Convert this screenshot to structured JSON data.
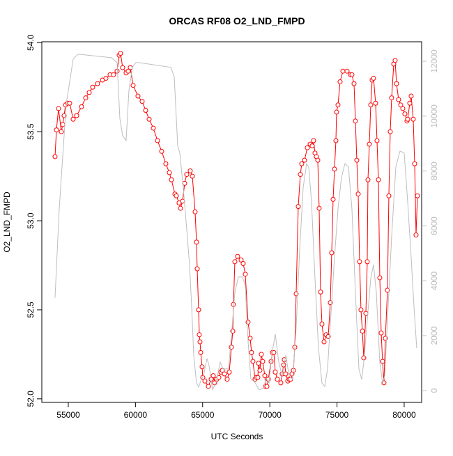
{
  "chart_data": {
    "type": "line-points",
    "title": "ORCAS RF08 O2_LND_FMPD",
    "x_label": "UTC Seconds",
    "y_label": "O2_LND_FMPD",
    "xlim": [
      53030,
      81300
    ],
    "xticks": [
      55000,
      60000,
      65000,
      70000,
      75000,
      80000
    ],
    "ylim": [
      51.98,
      54.005
    ],
    "yticks": [
      {
        "value": 52,
        "label": "52.0"
      },
      52.5,
      {
        "value": 53,
        "label": "53.0"
      },
      53.5,
      {
        "value": 54,
        "label": "54.0"
      }
    ],
    "y2lim": [
      -430,
      12710
    ],
    "y2ticks": [
      0,
      2000,
      4000,
      6000,
      8000,
      10000,
      12000
    ],
    "y2_color": "#bebebe",
    "series": [
      {
        "color": "#ff0000",
        "x": [
          54014,
          54118,
          54273,
          54481,
          54585,
          54689,
          54793,
          54948,
          55104,
          55363,
          55622,
          55986,
          56297,
          56556,
          56815,
          57179,
          57542,
          57801,
          58112,
          58372,
          58631,
          58787,
          58890,
          59046,
          59305,
          59461,
          59616,
          59824,
          60187,
          60498,
          60758,
          61017,
          61328,
          61639,
          61950,
          62261,
          62521,
          62677,
          62936,
          63040,
          63247,
          63351,
          63507,
          63662,
          63818,
          64077,
          64233,
          64440,
          64544,
          64596,
          64700,
          64752,
          64804,
          64856,
          64959,
          65011,
          65167,
          65426,
          65633,
          65789,
          65893,
          66048,
          66204,
          66360,
          66463,
          66619,
          66826,
          66982,
          67138,
          67241,
          67293,
          67397,
          67604,
          67864,
          68019,
          68175,
          68382,
          68538,
          68642,
          68745,
          68901,
          69005,
          69109,
          69160,
          69264,
          69368,
          69472,
          69627,
          69679,
          69783,
          69887,
          70094,
          70198,
          70302,
          70406,
          70561,
          70820,
          70924,
          71028,
          71080,
          71184,
          71339,
          71443,
          71547,
          71650,
          71754,
          71858,
          71961,
          72117,
          72273,
          72376,
          72584,
          72791,
          72999,
          73155,
          73258,
          73362,
          73466,
          73570,
          73673,
          73777,
          73881,
          74036,
          74192,
          74348,
          74503,
          74607,
          74711,
          74815,
          74918,
          74970,
          75074,
          75229,
          75437,
          75748,
          76007,
          76111,
          76267,
          76371,
          76474,
          76578,
          76682,
          76785,
          76889,
          76993,
          77148,
          77252,
          77304,
          77408,
          77512,
          77615,
          77719,
          77875,
          77978,
          78082,
          78186,
          78289,
          78393,
          78497,
          78601,
          78756,
          78860,
          78964,
          79068,
          79223,
          79327,
          79431,
          79586,
          79742,
          79898,
          80053,
          80209,
          80261,
          80417,
          80520,
          80676,
          80780,
          80884,
          80987
        ],
        "values": [
          53.36,
          53.51,
          53.63,
          53.5,
          53.54,
          53.59,
          53.65,
          53.66,
          53.66,
          53.57,
          53.59,
          53.64,
          53.69,
          53.72,
          53.75,
          53.77,
          53.79,
          53.8,
          53.82,
          53.82,
          53.84,
          53.93,
          53.94,
          53.86,
          53.83,
          53.84,
          53.86,
          53.76,
          53.7,
          53.67,
          53.62,
          53.57,
          53.52,
          53.45,
          53.39,
          53.32,
          53.27,
          53.23,
          53.15,
          53.14,
          53.1,
          53.07,
          53.11,
          53.21,
          53.26,
          53.28,
          53.25,
          53.05,
          52.88,
          52.73,
          52.5,
          52.36,
          52.32,
          52.26,
          52.18,
          52.12,
          52.1,
          52.07,
          52.11,
          52.13,
          52.09,
          52.11,
          52.12,
          52.15,
          52.16,
          52.14,
          52.11,
          52.15,
          52.29,
          52.38,
          52.53,
          52.77,
          52.8,
          52.78,
          52.76,
          52.7,
          52.43,
          52.34,
          52.26,
          52.21,
          52.11,
          52.12,
          52.12,
          52.2,
          52.16,
          52.25,
          52.21,
          52.13,
          52.07,
          52.07,
          52.11,
          52.21,
          52.26,
          52.26,
          52.15,
          52.11,
          52.09,
          52.14,
          52.19,
          52.22,
          52.14,
          52.1,
          52.11,
          52.11,
          52.14,
          52.16,
          52.29,
          52.59,
          53.08,
          53.26,
          53.32,
          53.34,
          53.41,
          53.43,
          53.42,
          53.45,
          53.38,
          53.36,
          53.34,
          53.07,
          52.6,
          52.42,
          52.32,
          52.36,
          52.35,
          52.54,
          52.82,
          53.12,
          53.29,
          53.45,
          53.61,
          53.65,
          53.78,
          53.84,
          53.84,
          53.82,
          53.82,
          53.77,
          53.56,
          53.34,
          53.15,
          52.77,
          52.5,
          52.38,
          52.23,
          52.48,
          52.77,
          53.23,
          53.43,
          53.65,
          53.79,
          53.8,
          53.66,
          53.45,
          53.23,
          52.68,
          52.37,
          52.21,
          52.09,
          52.34,
          52.61,
          53.14,
          53.5,
          53.69,
          53.88,
          53.9,
          53.77,
          53.68,
          53.65,
          53.63,
          53.6,
          53.56,
          53.57,
          53.66,
          53.7,
          53.57,
          53.32,
          52.92,
          53.14
        ]
      },
      {
        "color": "#bebebe",
        "axis": "y2",
        "x": [
          54014,
          54326,
          54844,
          55363,
          55726,
          58216,
          58631,
          58838,
          59046,
          59305,
          59513,
          59772,
          60031,
          60291,
          62625,
          62884,
          63144,
          63299,
          63559,
          63818,
          64025,
          64181,
          64337,
          64544,
          64700,
          64907,
          65063,
          65322,
          65478,
          65737,
          65996,
          66307,
          66515,
          66930,
          67189,
          67397,
          67656,
          67967,
          68175,
          68382,
          68590,
          68849,
          69212,
          69524,
          69731,
          69939,
          70146,
          70406,
          70665,
          70924,
          71184,
          71443,
          71702,
          71961,
          72221,
          72480,
          72740,
          72895,
          73103,
          73362,
          73621,
          73881,
          74088,
          74296,
          74555,
          74815,
          75074,
          75333,
          75592,
          75852,
          76111,
          76371,
          76630,
          76837,
          76993,
          77252,
          77512,
          77719,
          77926,
          78186,
          78393,
          78549,
          78756,
          79068,
          79379,
          79690,
          80001,
          80261,
          80520,
          80728,
          80935
        ],
        "values": [
          3380,
          6620,
          10430,
          12080,
          12260,
          12130,
          11950,
          9920,
          9290,
          9110,
          10940,
          11780,
          11950,
          11950,
          11780,
          11450,
          8910,
          8660,
          7390,
          5860,
          4590,
          3070,
          1290,
          280,
          130,
          410,
          530,
          1170,
          910,
          30,
          280,
          1040,
          790,
          790,
          2310,
          3580,
          4140,
          4140,
          3830,
          1800,
          410,
          330,
          30,
          80,
          460,
          280,
          1290,
          2060,
          1040,
          530,
          1290,
          530,
          410,
          2310,
          5100,
          7390,
          8270,
          8150,
          6880,
          4090,
          1550,
          280,
          150,
          790,
          2820,
          4850,
          6620,
          7770,
          8270,
          8150,
          6620,
          3580,
          790,
          410,
          1040,
          2560,
          4090,
          4590,
          3580,
          1040,
          280,
          530,
          2560,
          5610,
          8150,
          8730,
          8660,
          6880,
          4850,
          3070,
          1550
        ]
      }
    ]
  }
}
